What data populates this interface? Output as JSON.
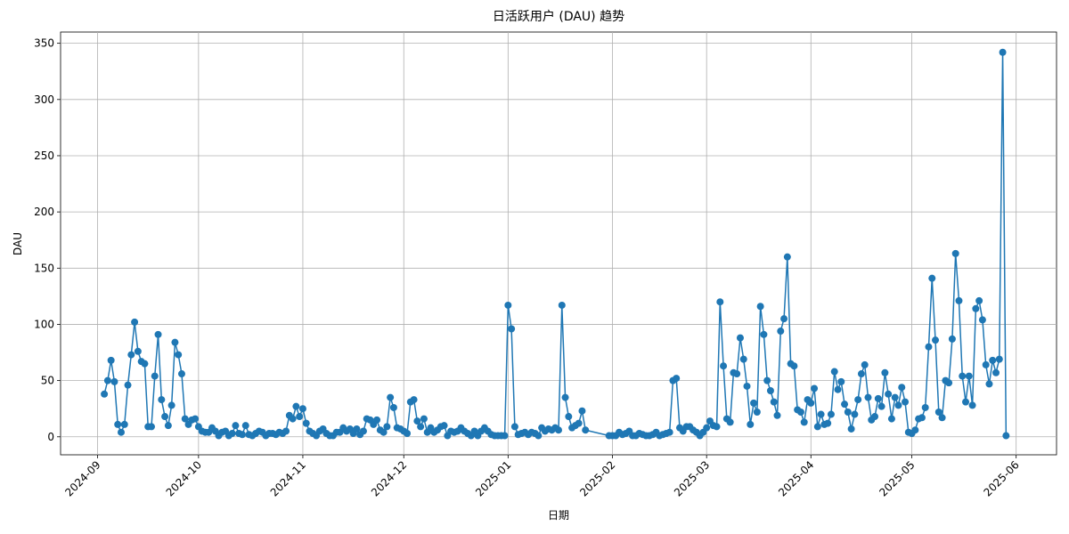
{
  "chart_data": {
    "type": "line",
    "title": "日活跃用户 (DAU) 趋势",
    "x_label": "日期",
    "y_label": "DAU",
    "color": "#1f77b4",
    "grid": true,
    "xlim": [
      -11,
      285
    ],
    "ylim": [
      -16,
      360
    ],
    "xticks": [
      {
        "value": 0,
        "label": "2024-09"
      },
      {
        "value": 30,
        "label": "2024-10"
      },
      {
        "value": 61,
        "label": "2024-11"
      },
      {
        "value": 91,
        "label": "2024-12"
      },
      {
        "value": 122,
        "label": "2025-01"
      },
      {
        "value": 153,
        "label": "2025-02"
      },
      {
        "value": 181,
        "label": "2025-03"
      },
      {
        "value": 212,
        "label": "2025-04"
      },
      {
        "value": 242,
        "label": "2025-05"
      },
      {
        "value": 273,
        "label": "2025-06"
      }
    ],
    "yticks": [
      0,
      50,
      100,
      150,
      200,
      250,
      300,
      350
    ],
    "x": [
      2,
      3,
      4,
      5,
      6,
      7,
      8,
      9,
      10,
      11,
      12,
      13,
      14,
      15,
      16,
      17,
      18,
      19,
      20,
      21,
      22,
      23,
      24,
      25,
      26,
      27,
      28,
      29,
      30,
      31,
      32,
      33,
      34,
      35,
      36,
      37,
      38,
      39,
      40,
      41,
      42,
      43,
      44,
      45,
      46,
      47,
      48,
      49,
      50,
      51,
      52,
      53,
      54,
      55,
      56,
      57,
      58,
      59,
      60,
      61,
      62,
      63,
      64,
      65,
      66,
      67,
      68,
      69,
      70,
      71,
      72,
      73,
      74,
      75,
      76,
      77,
      78,
      79,
      80,
      81,
      82,
      83,
      84,
      85,
      86,
      87,
      88,
      89,
      90,
      91,
      92,
      93,
      94,
      95,
      96,
      97,
      98,
      99,
      100,
      101,
      102,
      103,
      104,
      105,
      106,
      107,
      108,
      109,
      110,
      111,
      112,
      113,
      114,
      115,
      116,
      117,
      118,
      119,
      120,
      121,
      122,
      123,
      124,
      125,
      126,
      127,
      128,
      129,
      130,
      131,
      132,
      133,
      134,
      135,
      136,
      137,
      138,
      139,
      140,
      141,
      142,
      143,
      144,
      145,
      152,
      153,
      154,
      155,
      156,
      157,
      158,
      159,
      160,
      161,
      162,
      163,
      164,
      165,
      166,
      167,
      168,
      169,
      170,
      171,
      172,
      173,
      174,
      175,
      176,
      177,
      178,
      179,
      180,
      181,
      182,
      183,
      184,
      185,
      186,
      187,
      188,
      189,
      190,
      191,
      192,
      193,
      194,
      195,
      196,
      197,
      198,
      199,
      200,
      201,
      202,
      203,
      204,
      205,
      206,
      207,
      208,
      209,
      210,
      211,
      212,
      213,
      214,
      215,
      216,
      217,
      218,
      219,
      220,
      221,
      222,
      223,
      224,
      225,
      226,
      227,
      228,
      229,
      230,
      231,
      232,
      233,
      234,
      235,
      236,
      237,
      238,
      239,
      240,
      241,
      242,
      243,
      244,
      245,
      246,
      247,
      248,
      249,
      250,
      251,
      252,
      253,
      254,
      255,
      256,
      257,
      258,
      259,
      260,
      261,
      262,
      263,
      264,
      265,
      266,
      267,
      268,
      269,
      270
    ],
    "values": [
      38,
      50,
      68,
      49,
      11,
      4,
      11,
      46,
      73,
      102,
      76,
      67,
      65,
      9,
      9,
      54,
      91,
      33,
      18,
      10,
      28,
      84,
      73,
      56,
      16,
      11,
      15,
      16,
      9,
      5,
      4,
      4,
      8,
      5,
      1,
      4,
      5,
      1,
      3,
      10,
      3,
      2,
      10,
      2,
      1,
      3,
      5,
      4,
      1,
      3,
      3,
      2,
      4,
      3,
      5,
      19,
      16,
      27,
      18,
      25,
      12,
      5,
      3,
      1,
      5,
      7,
      3,
      1,
      1,
      4,
      4,
      8,
      5,
      7,
      3,
      7,
      2,
      5,
      16,
      15,
      11,
      15,
      6,
      4,
      9,
      35,
      26,
      8,
      7,
      5,
      3,
      31,
      33,
      14,
      9,
      16,
      4,
      8,
      4,
      6,
      9,
      10,
      1,
      5,
      4,
      5,
      8,
      5,
      3,
      1,
      5,
      1,
      5,
      8,
      5,
      2,
      1,
      1,
      1,
      1,
      117,
      96,
      9,
      2,
      3,
      4,
      2,
      4,
      3,
      1,
      8,
      5,
      7,
      6,
      8,
      6,
      117,
      35,
      18,
      8,
      10,
      12,
      23,
      6,
      1,
      1,
      1,
      4,
      2,
      3,
      5,
      1,
      1,
      3,
      2,
      1,
      1,
      2,
      4,
      1,
      2,
      3,
      4,
      50,
      52,
      8,
      5,
      9,
      9,
      6,
      4,
      1,
      4,
      8,
      14,
      10,
      9,
      120,
      63,
      16,
      13,
      57,
      56,
      88,
      69,
      45,
      11,
      30,
      22,
      116,
      91,
      50,
      41,
      31,
      19,
      94,
      105,
      160,
      65,
      63,
      24,
      22,
      13,
      33,
      30,
      43,
      9,
      20,
      11,
      12,
      20,
      58,
      42,
      49,
      29,
      22,
      7,
      20,
      33,
      56,
      64,
      35,
      15,
      18,
      34,
      27,
      57,
      38,
      16,
      35,
      28,
      44,
      31,
      4,
      3,
      6,
      16,
      17,
      26,
      80,
      141,
      86,
      22,
      17,
      50,
      48,
      87,
      163,
      121,
      54,
      31,
      54,
      28,
      114,
      121,
      104,
      64,
      47,
      68,
      57,
      69,
      342,
      1
    ]
  }
}
